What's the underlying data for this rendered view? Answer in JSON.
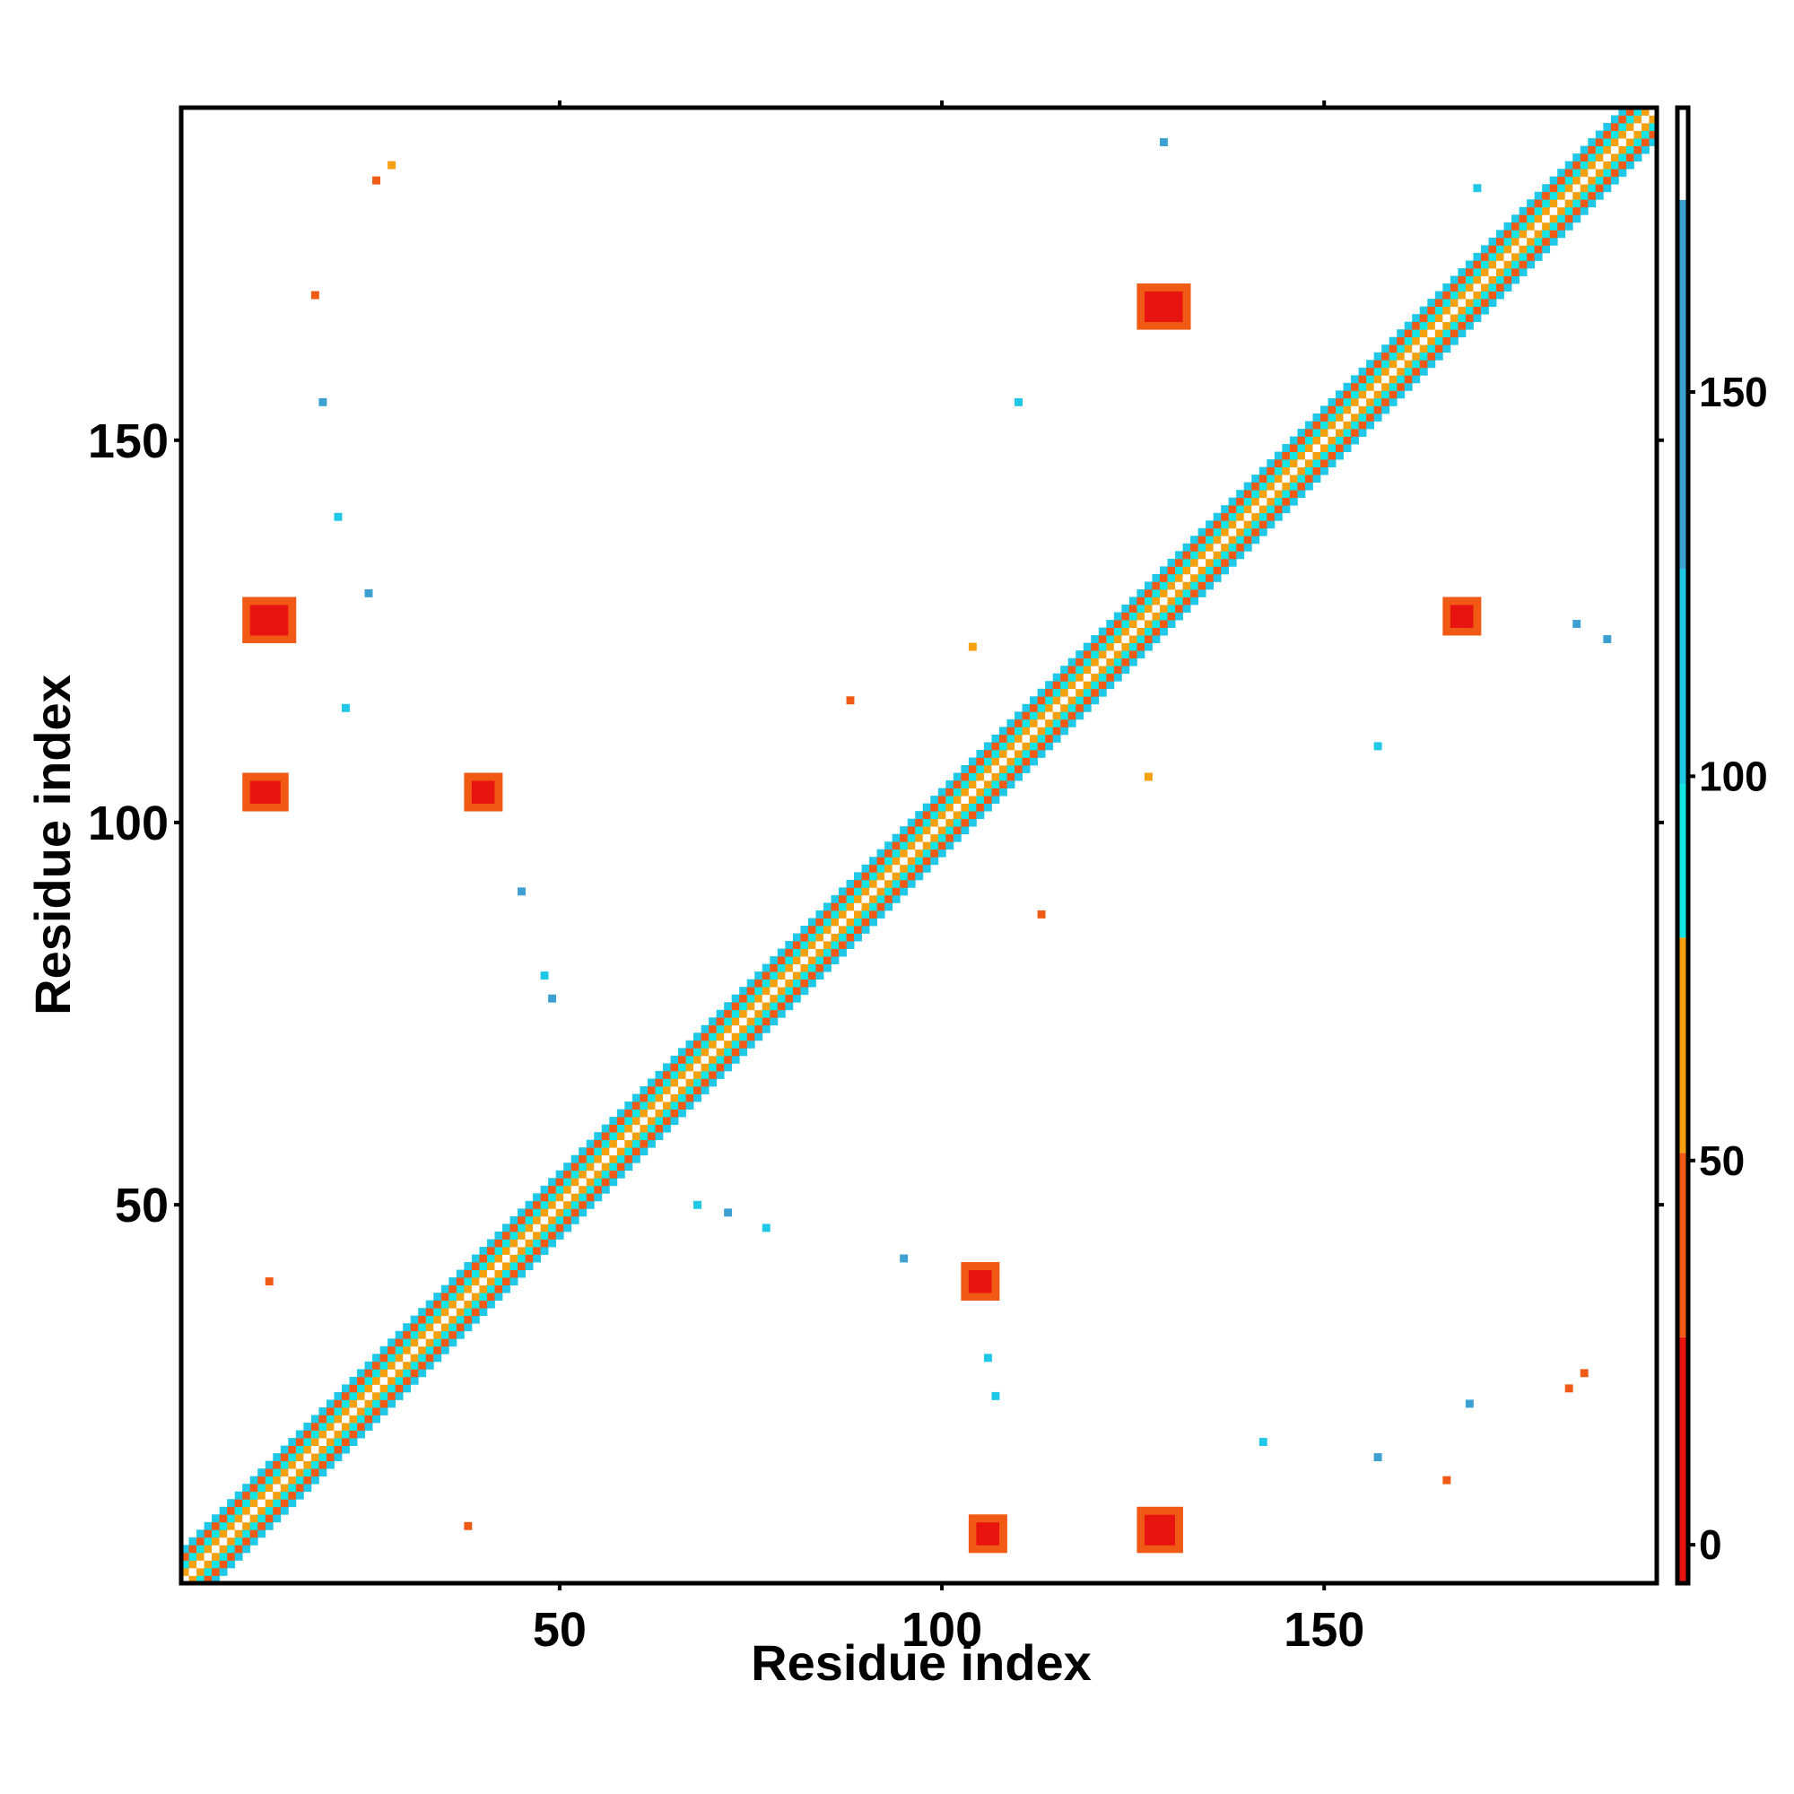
{
  "chart_data": {
    "type": "heatmap",
    "title": "",
    "xlabel": "Residue index",
    "ylabel": "Residue index",
    "xlim": [
      1,
      193
    ],
    "ylim": [
      1,
      193
    ],
    "x_ticks": [
      50,
      100,
      150
    ],
    "y_ticks": [
      50,
      100,
      150
    ],
    "x_tick_labels": [
      "50",
      "100",
      "150"
    ],
    "y_tick_labels": [
      "50",
      "100",
      "150"
    ],
    "grid": false,
    "colorbar": {
      "position": "right",
      "range": [
        -5,
        187
      ],
      "ticks": [
        0,
        50,
        100,
        150
      ],
      "tick_labels": [
        "0",
        "50",
        "100",
        "150"
      ],
      "bands": [
        {
          "from": -5,
          "to": 27,
          "color": "#e8140f"
        },
        {
          "from": 27,
          "to": 51,
          "color": "#f05a14"
        },
        {
          "from": 51,
          "to": 79,
          "color": "#f5a00f"
        },
        {
          "from": 79,
          "to": 99,
          "color": "#14e6e6"
        },
        {
          "from": 99,
          "to": 127,
          "color": "#1ec8e6"
        },
        {
          "from": 127,
          "to": 175,
          "color": "#3ca0d2"
        },
        {
          "from": 175,
          "to": 187,
          "color": "#ffffff"
        }
      ]
    },
    "diagonal_bands": [
      {
        "offset": 0,
        "value": 187
      },
      {
        "offset": 1,
        "value": 60
      },
      {
        "offset": 2,
        "value": 90
      },
      {
        "offset": 3,
        "value": 40
      },
      {
        "offset": 4,
        "value": 110
      }
    ],
    "off_diagonal_blocks": [
      {
        "x": [
          104,
          108
        ],
        "y": [
          5,
          9
        ],
        "value": 10
      },
      {
        "x": [
          126,
          131
        ],
        "y": [
          5,
          10
        ],
        "value": 10
      },
      {
        "x": [
          103,
          107
        ],
        "y": [
          38,
          42
        ],
        "value": 10
      },
      {
        "x": [
          9,
          14
        ],
        "y": [
          102,
          106
        ],
        "value": 10
      },
      {
        "x": [
          38,
          42
        ],
        "y": [
          102,
          106
        ],
        "value": 10
      },
      {
        "x": [
          9,
          15
        ],
        "y": [
          124,
          129
        ],
        "value": 10
      },
      {
        "x": [
          166,
          170
        ],
        "y": [
          125,
          129
        ],
        "value": 10
      },
      {
        "x": [
          126,
          132
        ],
        "y": [
          165,
          170
        ],
        "value": 10
      }
    ],
    "scattered_contacts": [
      {
        "x": 12,
        "y": 40,
        "value": 40
      },
      {
        "x": 38,
        "y": 8,
        "value": 40
      },
      {
        "x": 68,
        "y": 50,
        "value": 110
      },
      {
        "x": 72,
        "y": 49,
        "value": 140
      },
      {
        "x": 77,
        "y": 47,
        "value": 110
      },
      {
        "x": 95,
        "y": 43,
        "value": 140
      },
      {
        "x": 106,
        "y": 30,
        "value": 110
      },
      {
        "x": 107,
        "y": 25,
        "value": 110
      },
      {
        "x": 184,
        "y": 28,
        "value": 40
      },
      {
        "x": 182,
        "y": 26,
        "value": 40
      },
      {
        "x": 169,
        "y": 24,
        "value": 140
      },
      {
        "x": 142,
        "y": 19,
        "value": 110
      },
      {
        "x": 157,
        "y": 17,
        "value": 140
      },
      {
        "x": 166,
        "y": 14,
        "value": 40
      },
      {
        "x": 26,
        "y": 184,
        "value": 40
      },
      {
        "x": 28,
        "y": 186,
        "value": 60
      },
      {
        "x": 18,
        "y": 169,
        "value": 40
      },
      {
        "x": 19,
        "y": 155,
        "value": 140
      },
      {
        "x": 21,
        "y": 140,
        "value": 110
      },
      {
        "x": 25,
        "y": 130,
        "value": 140
      },
      {
        "x": 22,
        "y": 115,
        "value": 110
      },
      {
        "x": 45,
        "y": 91,
        "value": 140
      },
      {
        "x": 48,
        "y": 80,
        "value": 110
      },
      {
        "x": 49,
        "y": 77,
        "value": 140
      },
      {
        "x": 110,
        "y": 155,
        "value": 110
      },
      {
        "x": 104,
        "y": 123,
        "value": 60
      },
      {
        "x": 88,
        "y": 116,
        "value": 40
      },
      {
        "x": 113,
        "y": 88,
        "value": 40
      },
      {
        "x": 157,
        "y": 110,
        "value": 110
      },
      {
        "x": 127,
        "y": 106,
        "value": 60
      },
      {
        "x": 129,
        "y": 189,
        "value": 140
      },
      {
        "x": 170,
        "y": 183,
        "value": 110
      },
      {
        "x": 183,
        "y": 126,
        "value": 140
      },
      {
        "x": 187,
        "y": 124,
        "value": 140
      }
    ]
  }
}
